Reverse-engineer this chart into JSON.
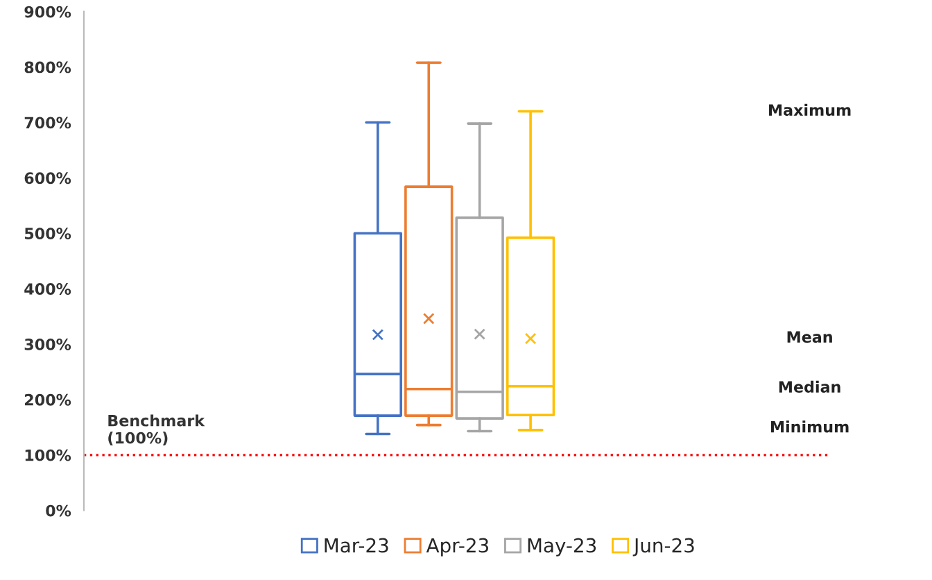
{
  "chart_data": {
    "type": "box",
    "categories": [
      null
    ],
    "series": [
      {
        "name": "Mar-23",
        "color": "#4472c4",
        "boxes": [
          {
            "low": 138,
            "q1": 171,
            "median": 246,
            "q3": 500,
            "high": 700,
            "mean": 317
          }
        ]
      },
      {
        "name": "Apr-23",
        "color": "#ed7d31",
        "boxes": [
          {
            "low": 154,
            "q1": 171,
            "median": 219,
            "q3": 584,
            "high": 808,
            "mean": 346
          }
        ]
      },
      {
        "name": "May-23",
        "color": "#a5a5a5",
        "boxes": [
          {
            "low": 143,
            "q1": 166,
            "median": 214,
            "q3": 528,
            "high": 698,
            "mean": 318
          }
        ]
      },
      {
        "name": "Jun-23",
        "color": "#ffc000",
        "boxes": [
          {
            "low": 145,
            "q1": 172,
            "median": 224,
            "q3": 492,
            "high": 720,
            "mean": 310
          }
        ]
      }
    ],
    "ylim": [
      0,
      900
    ],
    "yticks": [
      {
        "value": 0,
        "label": "0%"
      },
      {
        "value": 100,
        "label": "100%"
      },
      {
        "value": 200,
        "label": "200%"
      },
      {
        "value": 300,
        "label": "300%"
      },
      {
        "value": 400,
        "label": "400%"
      },
      {
        "value": 500,
        "label": "500%"
      },
      {
        "value": 600,
        "label": "600%"
      },
      {
        "value": 700,
        "label": "700%"
      },
      {
        "value": 800,
        "label": "800%"
      },
      {
        "value": 900,
        "label": "900%"
      }
    ],
    "ref_lines": [
      {
        "axis": "y",
        "value": 100,
        "label": "Benchmark\n(100%)",
        "color": "#ff0000",
        "line_style": "dotted"
      }
    ],
    "annotations": [
      "Maximum",
      "Mean",
      "Median",
      "Minimum"
    ],
    "marker": "cross",
    "legend": "bottom",
    "grid": false,
    "tick_labels": "y"
  }
}
